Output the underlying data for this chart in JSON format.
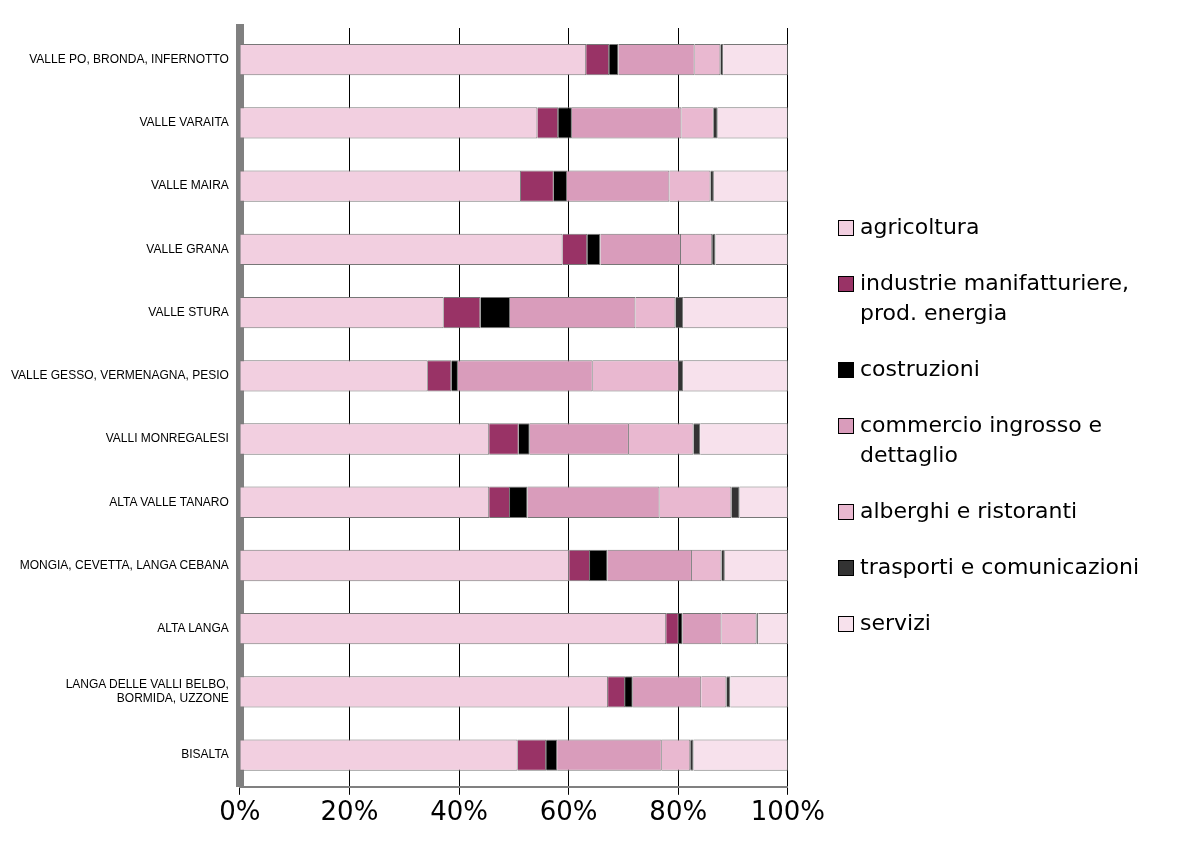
{
  "chart_data": {
    "type": "bar",
    "orientation": "horizontal",
    "stacked": true,
    "categories": [
      "VALLE PO, BRONDA, INFERNOTTO",
      "VALLE VARAITA",
      "VALLE MAIRA",
      "VALLE GRANA",
      "VALLE STURA",
      "VALLE GESSO, VERMENAGNA, PESIO",
      "VALLI MONREGALESI",
      "ALTA VALLE TANARO",
      "MONGIA, CEVETTA, LANGA CEBANA",
      "ALTA LANGA",
      "LANGA DELLE VALLI BELBO, BORMIDA, UZZONE",
      "BISALTA"
    ],
    "series": [
      {
        "name": "agricoltura",
        "color": "#f2cfe0",
        "values": [
          63.2,
          54.3,
          51.3,
          58.9,
          37.2,
          34.3,
          45.5,
          45.5,
          60.1,
          77.8,
          67.2,
          50.7
        ]
      },
      {
        "name": "industrie manifatturiere, prod. energia",
        "color": "#993366",
        "values": [
          4.2,
          3.8,
          6.0,
          4.5,
          6.7,
          4.3,
          5.4,
          3.8,
          3.8,
          2.3,
          3.1,
          5.2
        ]
      },
      {
        "name": "costruzioni",
        "color": "#000000",
        "values": [
          1.7,
          2.5,
          2.4,
          2.4,
          5.4,
          1.2,
          2.0,
          3.2,
          3.2,
          0.7,
          1.4,
          2.0
        ]
      },
      {
        "name": "commercio ingrosso e dettaglio",
        "color": "#d99cbb",
        "values": [
          13.9,
          20.0,
          18.7,
          14.7,
          22.9,
          24.6,
          18.1,
          24.1,
          15.4,
          7.1,
          12.5,
          19.1
        ]
      },
      {
        "name": "alberghi e ristoranti",
        "color": "#e9b8d0",
        "values": [
          4.7,
          5.9,
          7.5,
          5.7,
          7.3,
          15.7,
          11.8,
          13.1,
          5.4,
          6.4,
          4.6,
          5.2
        ]
      },
      {
        "name": "trasporti e comunicazioni",
        "color": "#333333",
        "values": [
          0.5,
          0.7,
          0.6,
          0.6,
          1.4,
          0.8,
          1.2,
          1.5,
          0.6,
          0.3,
          0.7,
          0.6
        ]
      },
      {
        "name": "servizi",
        "color": "#f7e1ec",
        "values": [
          11.8,
          12.8,
          13.5,
          13.2,
          19.1,
          19.1,
          16.0,
          8.8,
          11.5,
          5.4,
          10.5,
          17.2
        ]
      }
    ],
    "xlim": [
      0,
      100
    ],
    "xticks": [
      {
        "value": 0,
        "label": "0%"
      },
      {
        "value": 20,
        "label": "20%"
      },
      {
        "value": 40,
        "label": "40%"
      },
      {
        "value": 60,
        "label": "60%"
      },
      {
        "value": 80,
        "label": "80%"
      },
      {
        "value": 100,
        "label": "100%"
      }
    ],
    "grid": "x",
    "legend": "right"
  }
}
